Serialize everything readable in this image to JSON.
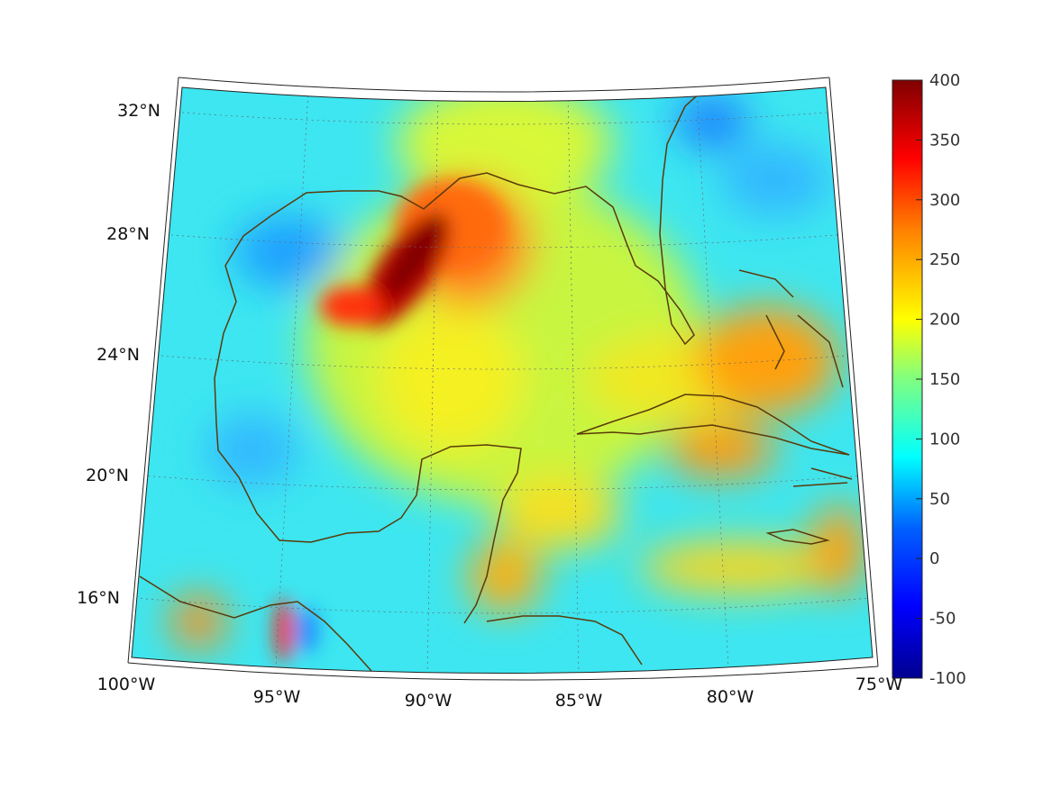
{
  "map": {
    "projection_frame": "lambert-conic",
    "lat_labels": [
      "32°N",
      "28°N",
      "24°N",
      "20°N",
      "16°N"
    ],
    "lon_labels": [
      "100°W",
      "95°W",
      "90°W",
      "85°W",
      "80°W",
      "75°W"
    ],
    "coastline_color": "#5a3a0a",
    "ocean_base_color": "#33e0ff"
  },
  "colorbar": {
    "ticks": [
      "400",
      "350",
      "300",
      "250",
      "200",
      "150",
      "100",
      "50",
      "0",
      "-50",
      "-100"
    ],
    "range": [
      -100,
      400
    ],
    "colormap": "jet",
    "stops": [
      "#00008f",
      "#0000ff",
      "#0080ff",
      "#00ffff",
      "#80ff80",
      "#ffff00",
      "#ff8000",
      "#ff0000",
      "#800000"
    ]
  }
}
